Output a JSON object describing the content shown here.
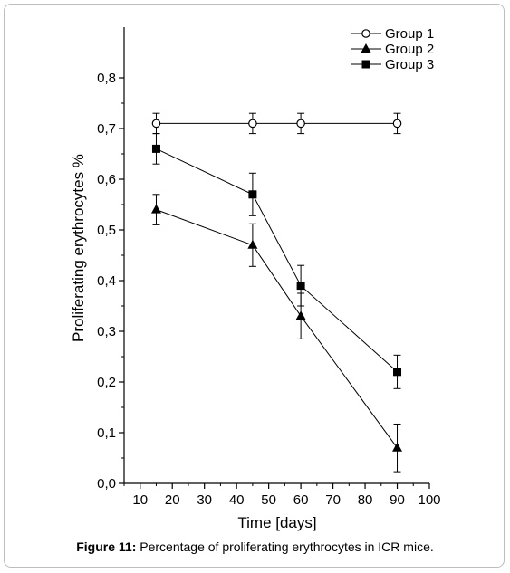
{
  "chart_data": {
    "type": "line",
    "title": "",
    "xlabel": "Time [days]",
    "ylabel": "Proliferating erythrocytes %",
    "xlim": [
      5,
      100
    ],
    "ylim": [
      0.0,
      0.9
    ],
    "xticks": [
      10,
      20,
      30,
      40,
      50,
      60,
      70,
      80,
      90,
      100
    ],
    "yticks": [
      0.0,
      0.1,
      0.2,
      0.3,
      0.4,
      0.5,
      0.6,
      0.7,
      0.8
    ],
    "ytick_labels": [
      "0,0",
      "0,1",
      "0,2",
      "0,3",
      "0,4",
      "0,5",
      "0,6",
      "0,7",
      "0,8"
    ],
    "x": [
      15,
      45,
      60,
      90
    ],
    "grid": false,
    "legend_position": "top-right",
    "series": [
      {
        "name": "Group 1",
        "marker": "open-circle",
        "values": [
          0.71,
          0.71,
          0.71,
          0.71
        ],
        "errors": [
          0.02,
          0.02,
          0.02,
          0.02
        ]
      },
      {
        "name": "Group 2",
        "marker": "filled-triangle",
        "values": [
          0.54,
          0.47,
          0.33,
          0.07
        ],
        "errors": [
          0.03,
          0.042,
          0.045,
          0.047
        ]
      },
      {
        "name": "Group 3",
        "marker": "filled-square",
        "values": [
          0.66,
          0.57,
          0.39,
          0.22
        ],
        "errors": [
          0.03,
          0.042,
          0.04,
          0.033
        ]
      }
    ]
  },
  "caption": {
    "label": "Figure 11:",
    "text": " Percentage of proliferating erythrocytes in ICR mice."
  }
}
